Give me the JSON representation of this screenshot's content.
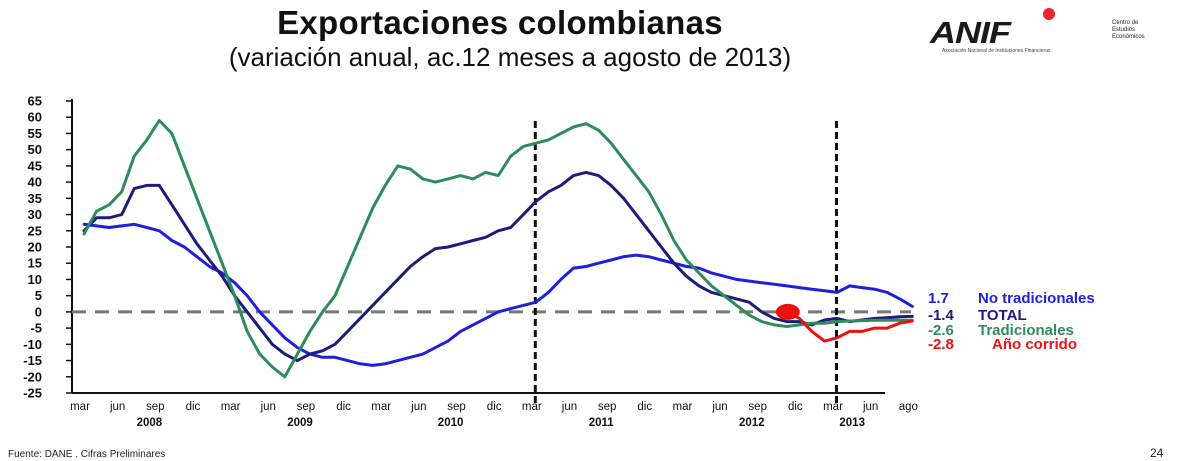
{
  "header": {
    "title": "Exportaciones colombianas",
    "subtitle": "(variación anual, ac.12 meses a agosto de 2013)"
  },
  "logo": {
    "word": "ANIF",
    "tagline": "Asociación Nacional de Instituciones Financieras",
    "side_text": [
      "Centro de",
      "Estudios",
      "Económicos"
    ]
  },
  "footer": {
    "source": "Fuente: DANE . Cifras Preliminares",
    "page": "24"
  },
  "chart_data": {
    "type": "line",
    "title": "Exportaciones colombianas",
    "subtitle": "(variación anual, ac.12 meses a agosto de 2013)",
    "y_ticks": [
      65,
      60,
      55,
      50,
      45,
      40,
      35,
      30,
      25,
      20,
      15,
      10,
      5,
      0,
      -5,
      -10,
      -15,
      -20,
      -25
    ],
    "ylim": [
      -25,
      65
    ],
    "x_month_labels": [
      "mar",
      "jun",
      "sep",
      "dic",
      "mar",
      "jun",
      "sep",
      "dic",
      "mar",
      "jun",
      "sep",
      "dic",
      "mar",
      "jun",
      "sep",
      "dic",
      "mar",
      "jun",
      "sep",
      "dic",
      "mar",
      "jun",
      "ago"
    ],
    "x_year_labels": [
      "2008",
      "2009",
      "2010",
      "2011",
      "2012",
      "2013"
    ],
    "zero_line": "dashed",
    "vertical_markers": [
      "mar 2011",
      "mar 2013"
    ],
    "series": [
      {
        "name": "No tradicionales",
        "color": "#1f1fe0",
        "end_label": "1.7",
        "x": [
          0,
          1,
          2,
          3,
          4,
          5,
          6,
          7,
          8,
          9,
          10,
          11,
          12,
          13,
          14,
          15,
          16,
          17,
          18,
          19,
          20,
          21,
          22,
          23,
          24,
          25,
          26,
          27,
          28,
          29,
          30,
          31,
          32,
          33,
          34,
          35,
          36,
          37,
          38,
          39,
          40,
          41,
          42,
          43,
          44,
          45,
          46,
          47,
          48,
          49,
          50,
          51,
          52,
          53,
          54,
          55,
          56,
          57,
          58,
          59,
          60,
          61,
          62,
          63,
          64,
          65,
          66
        ],
        "y": [
          27,
          26.5,
          26,
          26.5,
          27,
          26,
          25,
          22,
          20,
          17,
          14,
          12,
          9,
          5,
          0,
          -4,
          -8,
          -11,
          -13,
          -14,
          -14,
          -15,
          -16,
          -16.5,
          -16,
          -15,
          -14,
          -13,
          -11,
          -9,
          -6,
          -4,
          -2,
          0,
          1,
          2,
          3,
          6,
          10,
          13.5,
          14,
          15,
          16,
          17,
          17.5,
          17,
          16,
          15,
          14,
          13.5,
          12,
          11,
          10,
          9.5,
          9,
          8.5,
          8,
          7.5,
          7,
          6.5,
          6,
          8,
          7.5,
          7,
          6,
          4,
          1.7
        ]
      },
      {
        "name": "TOTAL",
        "color": "#1c1c7a",
        "end_label": "-1.4",
        "x": [
          0,
          1,
          2,
          3,
          4,
          5,
          6,
          7,
          8,
          9,
          10,
          11,
          12,
          13,
          14,
          15,
          16,
          17,
          18,
          19,
          20,
          21,
          22,
          23,
          24,
          25,
          26,
          27,
          28,
          29,
          30,
          31,
          32,
          33,
          34,
          35,
          36,
          37,
          38,
          39,
          40,
          41,
          42,
          43,
          44,
          45,
          46,
          47,
          48,
          49,
          50,
          51,
          52,
          53,
          54,
          55,
          56,
          57,
          58,
          59,
          60,
          61,
          62,
          63,
          64,
          65,
          66
        ],
        "y": [
          25,
          29,
          29,
          30,
          38,
          39,
          39,
          33,
          27,
          21,
          16,
          11,
          5,
          0,
          -5,
          -10,
          -13,
          -15,
          -13,
          -12,
          -10,
          -6,
          -2,
          2,
          6,
          10,
          14,
          17,
          19.5,
          20,
          21,
          22,
          23,
          25,
          26,
          30,
          34,
          37,
          39,
          42,
          43,
          42,
          39,
          35,
          30,
          25,
          20,
          15,
          11,
          8,
          6,
          5,
          4,
          3,
          0,
          -2,
          -3,
          -3,
          -4,
          -2.5,
          -2,
          -3,
          -2.5,
          -2,
          -1.8,
          -1.5,
          -1.4
        ]
      },
      {
        "name": "Tradicionales",
        "color": "#2e8b5a",
        "end_label": "-2.6",
        "x": [
          0,
          1,
          2,
          3,
          4,
          5,
          6,
          7,
          8,
          9,
          10,
          11,
          12,
          13,
          14,
          15,
          16,
          17,
          18,
          19,
          20,
          21,
          22,
          23,
          24,
          25,
          26,
          27,
          28,
          29,
          30,
          31,
          32,
          33,
          34,
          35,
          36,
          37,
          38,
          39,
          40,
          41,
          42,
          43,
          44,
          45,
          46,
          47,
          48,
          49,
          50,
          51,
          52,
          53,
          54,
          55,
          56,
          57,
          58,
          59,
          60,
          61,
          62,
          63,
          64,
          65,
          66
        ],
        "y": [
          24,
          31,
          33,
          37,
          48,
          53,
          59,
          55,
          45,
          35,
          25,
          15,
          5,
          -6,
          -13,
          -17,
          -20,
          -13,
          -6,
          0,
          5,
          14,
          23,
          32,
          39,
          45,
          44,
          41,
          40,
          41,
          42,
          41,
          43,
          42,
          48,
          51,
          52,
          53,
          55,
          57,
          58,
          56,
          52,
          47,
          42,
          37,
          30,
          22,
          16,
          12,
          8,
          5,
          2,
          -1,
          -3,
          -4,
          -4.5,
          -4,
          -3.5,
          -3.5,
          -3,
          -2.8,
          -2.7,
          -2.6,
          -2.6,
          -2.6,
          -2.6
        ]
      },
      {
        "name": "Año corrido",
        "color": "#ee1111",
        "end_label": "-2.8",
        "x": [
          56,
          57,
          58,
          59,
          60,
          61,
          62,
          63,
          64,
          65,
          66
        ],
        "y": [
          0,
          -2,
          -6,
          -9,
          -8,
          -6,
          -6,
          -5,
          -5,
          -3.5,
          -2.8
        ]
      }
    ],
    "highlight_point": {
      "x": 56,
      "y": 0,
      "color": "#ee1111"
    },
    "end_labels": [
      {
        "value": "1.7",
        "name": "No tradicionales",
        "color": "#1f1fe0"
      },
      {
        "value": "-1.4",
        "name": "TOTAL",
        "color": "#1c1c7a"
      },
      {
        "value": "-2.6",
        "name": "Tradicionales",
        "color": "#2e8b5a"
      },
      {
        "value": "-2.8",
        "name": "Año corrido",
        "color": "#ee1111"
      }
    ]
  }
}
